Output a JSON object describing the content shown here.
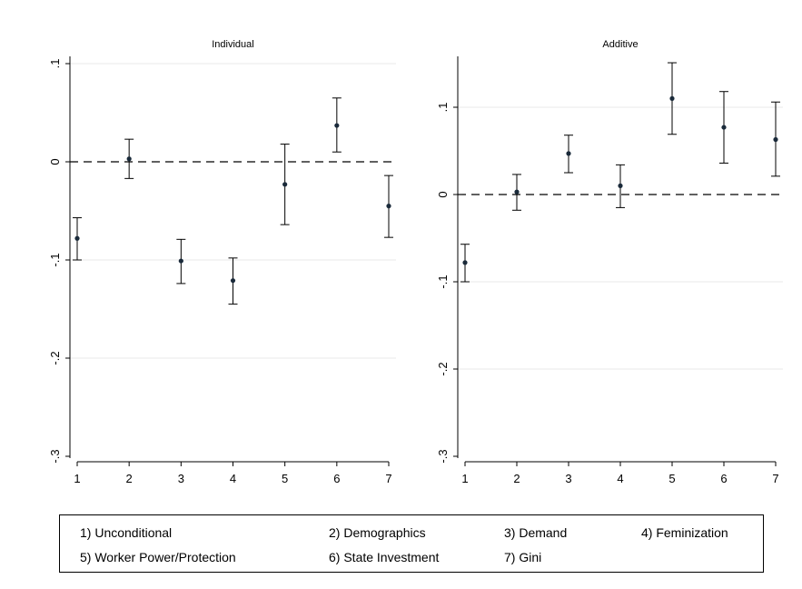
{
  "chart_data": [
    {
      "type": "scatter",
      "title": "Individual",
      "x": [
        1,
        2,
        3,
        4,
        5,
        6,
        7
      ],
      "y": [
        -0.078,
        0.003,
        -0.101,
        -0.121,
        -0.023,
        0.037,
        -0.045
      ],
      "ci_low": [
        -0.1,
        -0.017,
        -0.124,
        -0.145,
        -0.064,
        0.01,
        -0.077
      ],
      "ci_high": [
        -0.057,
        0.023,
        -0.079,
        -0.098,
        0.018,
        0.065,
        -0.014
      ],
      "xticks": [
        "1",
        "2",
        "3",
        "4",
        "5",
        "6",
        "7"
      ],
      "yticks": [
        "-.3",
        "-.2",
        "-.1",
        "0",
        ".1"
      ],
      "ylim": [
        -0.3,
        0.1
      ],
      "reference_line": 0,
      "grid": true
    },
    {
      "type": "scatter",
      "title": "Additive",
      "x": [
        1,
        2,
        3,
        4,
        5,
        6,
        7
      ],
      "y": [
        -0.078,
        0.003,
        0.047,
        0.01,
        0.11,
        0.077,
        0.063
      ],
      "ci_low": [
        -0.1,
        -0.018,
        0.025,
        -0.015,
        0.069,
        0.036,
        0.021
      ],
      "ci_high": [
        -0.057,
        0.023,
        0.068,
        0.034,
        0.151,
        0.118,
        0.106
      ],
      "xticks": [
        "1",
        "2",
        "3",
        "4",
        "5",
        "6",
        "7"
      ],
      "yticks": [
        "-.3",
        "-.2",
        "-.1",
        "0",
        ".1"
      ],
      "ylim": [
        -0.3,
        0.15
      ],
      "reference_line": 0,
      "grid": true
    }
  ],
  "legend": {
    "items": [
      "1) Unconditional",
      "2) Demographics",
      "3) Demand",
      "4) Feminization",
      "5) Worker Power/Protection",
      "6) State Investment",
      "7) Gini"
    ],
    "placement": "bottom"
  },
  "colors": {
    "marker": "#1a2a3a",
    "line": "#000000",
    "grid": "#eaeaea"
  }
}
